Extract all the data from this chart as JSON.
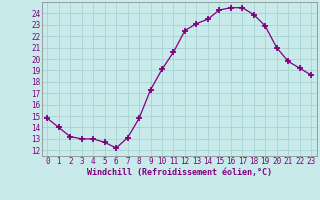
{
  "x": [
    0,
    1,
    2,
    3,
    4,
    5,
    6,
    7,
    8,
    9,
    10,
    11,
    12,
    13,
    14,
    15,
    16,
    17,
    18,
    19,
    20,
    21,
    22,
    23
  ],
  "y": [
    14.8,
    14.0,
    13.2,
    13.0,
    13.0,
    12.7,
    12.2,
    13.1,
    14.8,
    17.3,
    19.1,
    20.6,
    22.5,
    23.1,
    23.5,
    24.3,
    24.5,
    24.5,
    23.9,
    22.9,
    21.0,
    19.8,
    19.2,
    18.6
  ],
  "xlabel": "Windchill (Refroidissement éolien,°C)",
  "xlim": [
    -0.5,
    23.5
  ],
  "ylim": [
    11.5,
    25.0
  ],
  "yticks": [
    12,
    13,
    14,
    15,
    16,
    17,
    18,
    19,
    20,
    21,
    22,
    23,
    24
  ],
  "xticks": [
    0,
    1,
    2,
    3,
    4,
    5,
    6,
    7,
    8,
    9,
    10,
    11,
    12,
    13,
    14,
    15,
    16,
    17,
    18,
    19,
    20,
    21,
    22,
    23
  ],
  "line_color": "#800080",
  "marker": "+",
  "bg_color": "#c8eaea",
  "grid_color": "#a0cccc",
  "xlabel_color": "#800080",
  "tick_color": "#800080",
  "spine_color": "#808080"
}
